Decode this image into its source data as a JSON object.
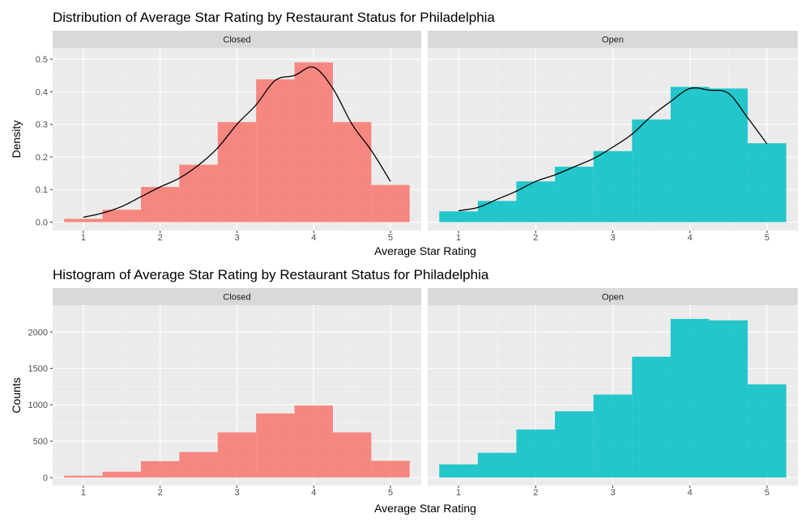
{
  "chart_data": [
    {
      "type": "histogram+density",
      "title": "Distribution of Average Star Rating by Restaurant Status for Philadelphia",
      "xlabel": "Average Star Rating",
      "ylabel": "Density",
      "xlim": [
        0.6,
        5.4
      ],
      "ylim": [
        -0.026,
        0.535
      ],
      "x_ticks": [
        1,
        2,
        3,
        4,
        5
      ],
      "y_ticks": [
        0.0,
        0.1,
        0.2,
        0.3,
        0.4,
        0.5
      ],
      "y_tick_labels": [
        "0.0",
        "0.1",
        "0.2",
        "0.3",
        "0.4",
        "0.5"
      ],
      "grid": true,
      "bin_edges": [
        0.75,
        1.25,
        1.75,
        2.25,
        2.75,
        3.25,
        3.75,
        4.25,
        4.75,
        5.25
      ],
      "panels": [
        {
          "name": "Closed",
          "color": "#F8766D",
          "values": [
            0.01,
            0.038,
            0.108,
            0.176,
            0.307,
            0.438,
            0.49,
            0.307,
            0.114
          ],
          "density_curve": {
            "x": [
              1.0,
              1.25,
              1.5,
              1.75,
              2.0,
              2.25,
              2.5,
              2.75,
              3.0,
              3.25,
              3.5,
              3.75,
              4.0,
              4.25,
              4.5,
              4.75,
              5.0
            ],
            "y": [
              0.015,
              0.028,
              0.048,
              0.078,
              0.108,
              0.135,
              0.175,
              0.228,
              0.3,
              0.36,
              0.435,
              0.45,
              0.475,
              0.41,
              0.3,
              0.22,
              0.125
            ]
          }
        },
        {
          "name": "Open",
          "color": "#00BFC4",
          "values": [
            0.033,
            0.065,
            0.125,
            0.17,
            0.218,
            0.315,
            0.415,
            0.41,
            0.242
          ],
          "density_curve": {
            "x": [
              1.0,
              1.25,
              1.5,
              1.75,
              2.0,
              2.25,
              2.5,
              2.75,
              3.0,
              3.25,
              3.5,
              3.75,
              4.0,
              4.25,
              4.5,
              4.75,
              5.0
            ],
            "y": [
              0.035,
              0.045,
              0.07,
              0.095,
              0.125,
              0.145,
              0.17,
              0.195,
              0.23,
              0.27,
              0.325,
              0.37,
              0.41,
              0.405,
              0.395,
              0.32,
              0.24
            ]
          }
        }
      ]
    },
    {
      "type": "histogram",
      "title": "Histogram of Average Star Rating by Restaurant Status for Philadelphia",
      "xlabel": "Average Star Rating",
      "ylabel": "Counts",
      "xlim": [
        0.6,
        5.4
      ],
      "ylim": [
        -110,
        2370
      ],
      "x_ticks": [
        1,
        2,
        3,
        4,
        5
      ],
      "y_ticks": [
        0,
        500,
        1000,
        1500,
        2000
      ],
      "y_tick_labels": [
        "0",
        "500",
        "1000",
        "1500",
        "2000"
      ],
      "grid": true,
      "bin_edges": [
        0.75,
        1.25,
        1.75,
        2.25,
        2.75,
        3.25,
        3.75,
        4.25,
        4.75,
        5.25
      ],
      "panels": [
        {
          "name": "Closed",
          "color": "#F8766D",
          "values": [
            25,
            80,
            225,
            350,
            620,
            880,
            990,
            620,
            230
          ]
        },
        {
          "name": "Open",
          "color": "#00BFC4",
          "values": [
            180,
            340,
            660,
            910,
            1140,
            1660,
            2180,
            2160,
            1280
          ]
        }
      ]
    }
  ]
}
